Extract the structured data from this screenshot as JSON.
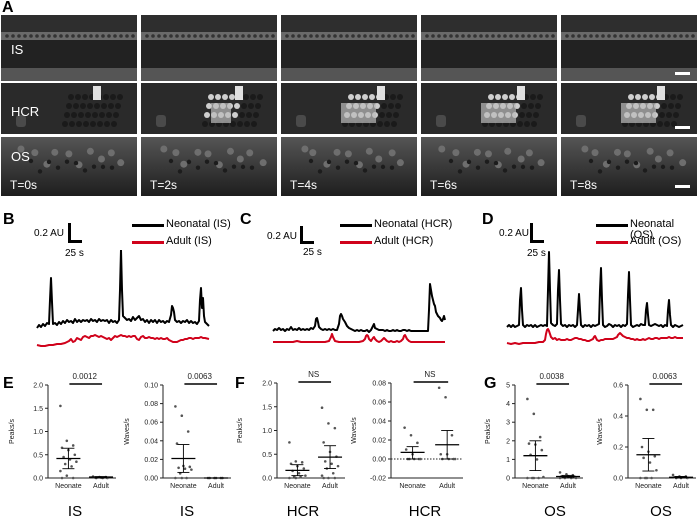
{
  "panel_a": {
    "letter": "A",
    "rows": [
      "IS",
      "HCR",
      "OS"
    ],
    "timepoints": [
      "T=0s",
      "T=2s",
      "T=4s",
      "T=6s",
      "T=8s"
    ]
  },
  "panel_b": {
    "letter": "B",
    "scale_y": "0.2 AU",
    "scale_x": "25 s",
    "legend": [
      "Neonatal (IS)",
      "Adult (IS)"
    ]
  },
  "panel_c": {
    "letter": "C",
    "scale_y": "0.2 AU",
    "scale_x": "25 s",
    "legend": [
      "Neonatal (HCR)",
      "Adult (HCR)"
    ]
  },
  "panel_d": {
    "letter": "D",
    "scale_y": "0.2 AU",
    "scale_x": "25 s",
    "legend": [
      "Neonatal (OS)",
      "Adult (OS)"
    ]
  },
  "panel_e": {
    "letter": "E",
    "label": "IS"
  },
  "panel_f": {
    "letter": "F",
    "label": "HCR"
  },
  "panel_g": {
    "letter": "G",
    "label": "OS"
  },
  "colors": {
    "neonatal": "#000000",
    "adult": "#d0021b"
  },
  "chart_data": [
    {
      "type": "line",
      "title": "B",
      "series": [
        {
          "name": "Neonatal (IS)",
          "color": "#000000"
        },
        {
          "name": "Adult (IS)",
          "color": "#d0021b"
        }
      ],
      "scale_bars": {
        "y": "0.2 AU",
        "x": "25 s"
      }
    },
    {
      "type": "line",
      "title": "C",
      "series": [
        {
          "name": "Neonatal (HCR)",
          "color": "#000000"
        },
        {
          "name": "Adult (HCR)",
          "color": "#d0021b"
        }
      ],
      "scale_bars": {
        "y": "0.2 AU",
        "x": "25 s"
      }
    },
    {
      "type": "line",
      "title": "D",
      "series": [
        {
          "name": "Neonatal (OS)",
          "color": "#000000"
        },
        {
          "name": "Adult (OS)",
          "color": "#d0021b"
        }
      ],
      "scale_bars": {
        "y": "0.2 AU",
        "x": "25 s"
      }
    },
    {
      "type": "scatter",
      "title": "E - IS",
      "ylabel": "Peaks/s",
      "categories": [
        "Neonate",
        "Adult"
      ],
      "ylim": [
        0,
        2.0
      ],
      "yticks": [
        "0.0",
        "0.5",
        "1.0",
        "1.5",
        "2.0"
      ],
      "means": [
        0.42,
        0.02
      ],
      "ci": [
        [
          0.2,
          0.64
        ],
        [
          0.0,
          0.03
        ]
      ],
      "points": {
        "Neonate": [
          1.55,
          0.8,
          0.7,
          0.65,
          0.6,
          0.5,
          0.45,
          0.4,
          0.35,
          0.3,
          0.25,
          0.15,
          0.05,
          0.0,
          0.0
        ],
        "Adult": [
          0.03,
          0.02,
          0.02,
          0.01,
          0.01,
          0.0,
          0.0,
          0.0
        ]
      },
      "significance": "0.0012"
    },
    {
      "type": "scatter",
      "title": "E - IS",
      "ylabel": "Waves/s",
      "categories": [
        "Neonate",
        "Adult"
      ],
      "ylim": [
        0,
        0.1
      ],
      "yticks": [
        "0.00",
        "0.02",
        "0.04",
        "0.06",
        "0.08",
        "0.10"
      ],
      "means": [
        0.021,
        0.0
      ],
      "ci": [
        [
          0.006,
          0.036
        ],
        [
          0.0,
          0.0
        ]
      ],
      "points": {
        "Neonate": [
          0.077,
          0.067,
          0.05,
          0.037,
          0.013,
          0.012,
          0.011,
          0.01,
          0.009,
          0.005,
          0.0,
          0.0,
          0.0
        ],
        "Adult": [
          0.0,
          0.0,
          0.0,
          0.0,
          0.0,
          0.0
        ]
      },
      "significance": "0.0063"
    },
    {
      "type": "scatter",
      "title": "F - HCR",
      "ylabel": "Peaks/s",
      "categories": [
        "Neonate",
        "Adult"
      ],
      "ylim": [
        0,
        2.0
      ],
      "yticks": [
        "0.0",
        "0.5",
        "1.0",
        "1.5",
        "2.0"
      ],
      "means": [
        0.16,
        0.44
      ],
      "ci": [
        [
          0.05,
          0.28
        ],
        [
          0.2,
          0.68
        ]
      ],
      "points": {
        "Neonate": [
          0.75,
          0.35,
          0.33,
          0.3,
          0.25,
          0.2,
          0.15,
          0.1,
          0.05,
          0.03,
          0.02,
          0.0,
          0.0
        ],
        "Adult": [
          1.48,
          1.15,
          1.05,
          0.75,
          0.55,
          0.45,
          0.35,
          0.3,
          0.25,
          0.2,
          0.1,
          0.05,
          0.0,
          0.0,
          0.0
        ]
      },
      "significance": "NS"
    },
    {
      "type": "scatter",
      "title": "F - HCR",
      "ylabel": "Waves/s",
      "categories": [
        "Neonate",
        "Adult"
      ],
      "ylim": [
        -0.02,
        0.08
      ],
      "yticks": [
        "-0.02",
        "0.00",
        "0.02",
        "0.04",
        "0.06",
        "0.08"
      ],
      "means": [
        0.007,
        0.015
      ],
      "ci": [
        [
          0.0,
          0.013
        ],
        [
          0.0,
          0.03
        ]
      ],
      "points": {
        "Neonate": [
          0.033,
          0.025,
          0.017,
          0.01,
          0.005,
          0.0,
          0.0,
          0.0,
          0.0,
          0.0
        ],
        "Adult": [
          0.075,
          0.065,
          0.025,
          0.005,
          0.005,
          0.0,
          0.0,
          0.0,
          0.0
        ]
      },
      "significance": "NS",
      "reference_line": 0.0
    },
    {
      "type": "scatter",
      "title": "G - OS",
      "ylabel": "Peaks/s",
      "categories": [
        "Neonate",
        "Adult"
      ],
      "ylim": [
        0,
        5
      ],
      "yticks": [
        "0",
        "1",
        "2",
        "3",
        "4",
        "5"
      ],
      "means": [
        1.2,
        0.08
      ],
      "ci": [
        [
          0.4,
          2.0
        ],
        [
          0.02,
          0.14
        ]
      ],
      "points": {
        "Neonate": [
          4.25,
          3.45,
          2.2,
          1.85,
          1.8,
          1.5,
          1.25,
          1.0,
          0.05,
          0.0,
          0.0,
          0.0,
          0.0
        ],
        "Adult": [
          0.3,
          0.2,
          0.15,
          0.1,
          0.1,
          0.08,
          0.05,
          0.05,
          0.0,
          0.0,
          0.0,
          0.0
        ]
      },
      "significance": "0.0038"
    },
    {
      "type": "scatter",
      "title": "G - OS",
      "ylabel": "Waves/s",
      "categories": [
        "Neonate",
        "Adult"
      ],
      "ylim": [
        0,
        0.6
      ],
      "yticks": [
        "0.0",
        "0.2",
        "0.4",
        "0.6"
      ],
      "means": [
        0.15,
        0.005
      ],
      "ci": [
        [
          0.045,
          0.255
        ],
        [
          0.0,
          0.01
        ]
      ],
      "points": {
        "Neonate": [
          0.51,
          0.44,
          0.44,
          0.2,
          0.17,
          0.14,
          0.13,
          0.1,
          0.05,
          0.0,
          0.0,
          0.0,
          0.0
        ],
        "Adult": [
          0.02,
          0.01,
          0.01,
          0.005,
          0.0,
          0.0,
          0.0
        ]
      },
      "significance": "0.0063"
    }
  ]
}
